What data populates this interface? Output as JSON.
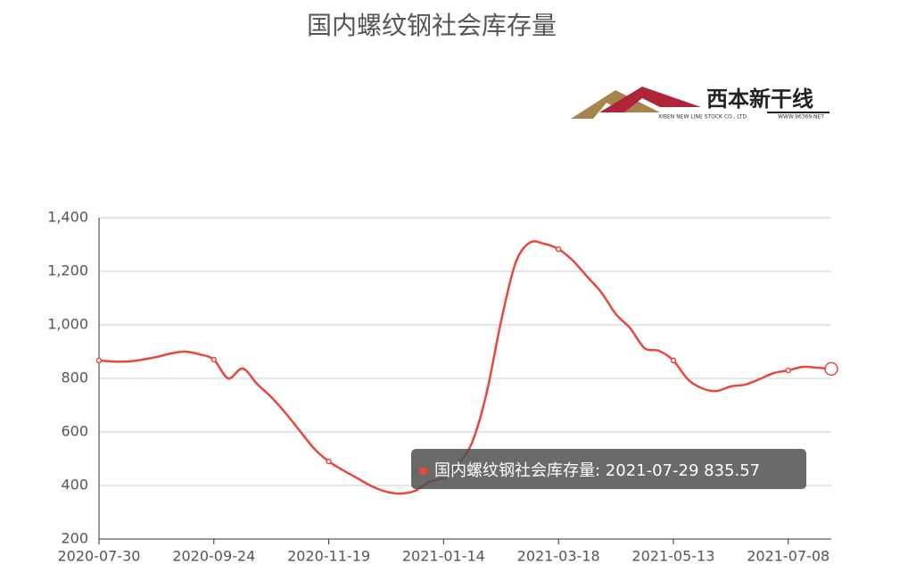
{
  "chart_data": {
    "type": "line",
    "title": "国内螺纹钢社会库存量",
    "logo": {
      "name": "西本新干线",
      "company": "XIBEN NEW LINE STOCK CO., LTD.",
      "site": "WWW.96369.NET"
    },
    "tooltip": "国内螺纹钢社会库存量: 2021-07-29 835.57",
    "categories": [
      "2020-07-30",
      null,
      null,
      null,
      null,
      null,
      null,
      null,
      "2020-09-24",
      null,
      null,
      null,
      null,
      null,
      null,
      null,
      "2020-11-19",
      null,
      null,
      null,
      null,
      null,
      null,
      null,
      "2021-01-14",
      null,
      null,
      null,
      null,
      null,
      null,
      null,
      "2021-03-18",
      null,
      null,
      null,
      null,
      null,
      null,
      null,
      "2021-05-13",
      null,
      null,
      null,
      null,
      null,
      null,
      null,
      "2021-07-08",
      null,
      null,
      null
    ],
    "series": [
      {
        "name": "国内螺纹钢社会库存量",
        "color": "#e8473c",
        "values": [
          867,
          863,
          863,
          870,
          880,
          893,
          900,
          890,
          870,
          800,
          837,
          780,
          730,
          670,
          603,
          537,
          490,
          457,
          427,
          397,
          377,
          370,
          380,
          413,
          430,
          480,
          563,
          747,
          1013,
          1230,
          1307,
          1303,
          1283,
          1240,
          1180,
          1120,
          1040,
          987,
          913,
          903,
          867,
          797,
          763,
          753,
          770,
          777,
          797,
          820,
          830,
          843,
          840,
          835.57
        ]
      }
    ],
    "ylim": [
      200,
      1400
    ],
    "yticks": [
      200,
      400,
      600,
      800,
      {
        "value": 1000,
        "label": "1,000"
      },
      {
        "value": 1200,
        "label": "1,200"
      },
      {
        "value": 1400,
        "label": "1,400"
      }
    ],
    "grid": true
  }
}
